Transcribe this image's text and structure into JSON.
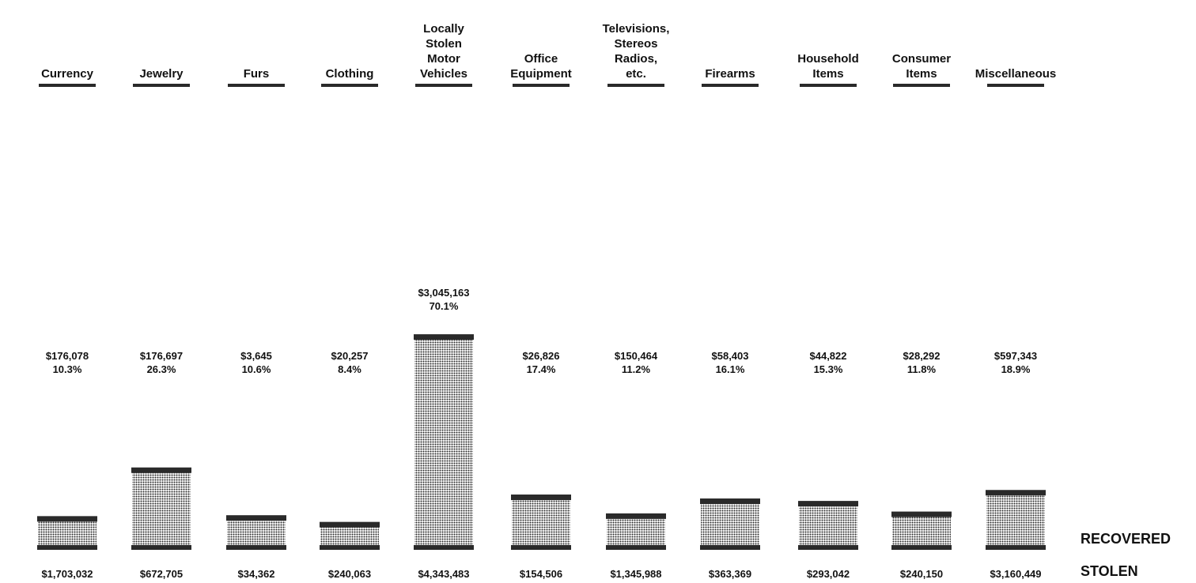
{
  "chart_data": {
    "type": "bar",
    "title": "",
    "xlabel": "",
    "ylabel": "",
    "categories": [
      [
        "Currency"
      ],
      [
        "Jewelry"
      ],
      [
        "Furs"
      ],
      [
        "Clothing"
      ],
      [
        "Locally",
        "Stolen",
        "Motor",
        "Vehicles"
      ],
      [
        "Office",
        "Equipment"
      ],
      [
        "Televisions,",
        "Stereos",
        "Radios,",
        "etc."
      ],
      [
        "Firearms"
      ],
      [
        "Household",
        "Items"
      ],
      [
        "Consumer",
        "Items"
      ],
      [
        "Miscellaneous"
      ]
    ],
    "recovered_labels": [
      "$176,078",
      "$176,697",
      "$3,645",
      "$20,257",
      "$3,045,163",
      "$26,826",
      "$150,464",
      "$58,403",
      "$44,822",
      "$28,292",
      "$597,343"
    ],
    "recovered_percent_labels": [
      "10.3%",
      "26.3%",
      "10.6%",
      "8.4%",
      "70.1%",
      "17.4%",
      "11.2%",
      "16.1%",
      "15.3%",
      "11.8%",
      "18.9%"
    ],
    "recovered_percent": [
      10.3,
      26.3,
      10.6,
      8.4,
      70.1,
      17.4,
      11.2,
      16.1,
      15.3,
      11.8,
      18.9
    ],
    "stolen_labels": [
      "$1,703,032",
      "$672,705",
      "$34,362",
      "$240,063",
      "$4,343,483",
      "$154,506",
      "$1,345,988",
      "$363,369",
      "$293,042",
      "$240,150",
      "$3,160,449"
    ],
    "legend": {
      "recovered": "RECOVERED",
      "stolen": "STOLEN"
    },
    "bar_color": "#2a2a2a",
    "ylim": [
      0,
      100
    ]
  }
}
